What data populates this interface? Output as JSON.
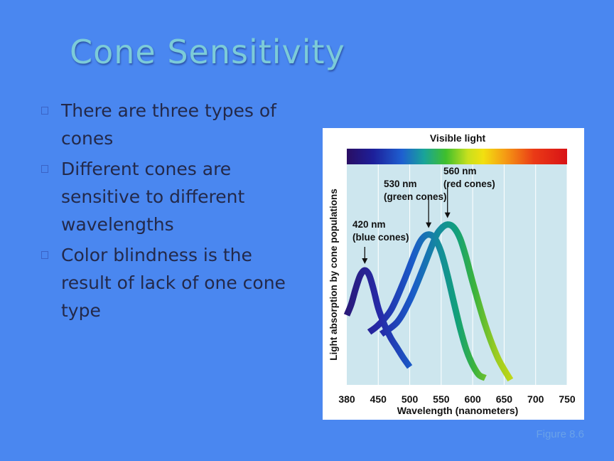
{
  "slide": {
    "title": "Cone Sensitivity",
    "bullets": [
      "There are three types of cones",
      "Different cones are sensitive to different wavelengths",
      "Color blindness is the result of lack of one cone type"
    ],
    "caption": "Figure 8.6"
  },
  "colors": {
    "background": "#4a87f0",
    "title": "#7ccbd8",
    "body_text": "#23294a",
    "plot_background": "#cde6ee"
  },
  "chart_data": {
    "type": "line",
    "title": "Visible light",
    "xlabel": "Wavelength (nanometers)",
    "ylabel": "Light absorption by cone populations",
    "xlim": [
      380,
      750
    ],
    "xticks": [
      380,
      450,
      500,
      550,
      600,
      650,
      700,
      750
    ],
    "grid": true,
    "series": [
      {
        "name": "blue cones",
        "peak_nm": 420,
        "annotation": [
          "420 nm",
          "(blue cones)"
        ],
        "x": [
          380,
          390,
          400,
          410,
          420,
          430,
          440,
          450,
          460,
          470,
          480,
          490,
          500
        ],
        "y": [
          0.05,
          0.16,
          0.32,
          0.45,
          0.5,
          0.45,
          0.3,
          0.12,
          -0.05,
          -0.18,
          -0.28,
          -0.38,
          -0.47
        ]
      },
      {
        "name": "green cones",
        "peak_nm": 530,
        "annotation": [
          "530 nm",
          "(green cones)"
        ],
        "x": [
          430,
          450,
          470,
          490,
          510,
          520,
          530,
          540,
          550,
          560,
          570,
          580,
          590,
          600,
          610,
          620
        ],
        "y": [
          -0.12,
          -0.05,
          0.1,
          0.38,
          0.7,
          0.82,
          0.86,
          0.82,
          0.68,
          0.45,
          0.18,
          -0.08,
          -0.3,
          -0.45,
          -0.55,
          -0.58
        ]
      },
      {
        "name": "red cones",
        "peak_nm": 560,
        "annotation": [
          "560 nm",
          "(red cones)"
        ],
        "x": [
          455,
          480,
          500,
          520,
          540,
          550,
          560,
          570,
          580,
          590,
          600,
          620,
          640,
          660
        ],
        "y": [
          -0.14,
          -0.02,
          0.2,
          0.5,
          0.82,
          0.92,
          0.96,
          0.93,
          0.82,
          0.62,
          0.38,
          -0.05,
          -0.38,
          -0.6
        ]
      }
    ]
  }
}
